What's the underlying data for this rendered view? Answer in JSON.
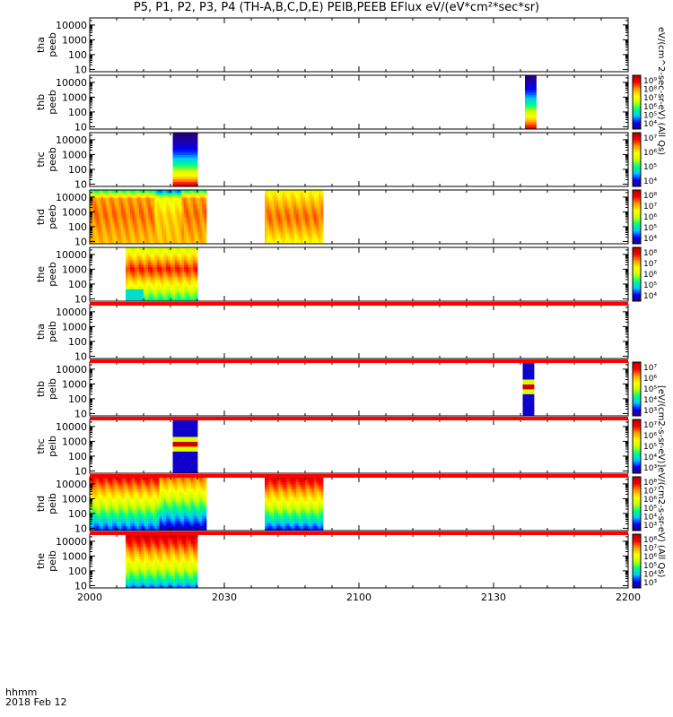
{
  "title": "P5, P1, P2, P3, P4 (TH-A,B,C,D,E) PEIB,PEEB EFlux eV/(eV*cm²*sec*sr)",
  "footer": {
    "hhmm": "hhmm",
    "date": "2018 Feb 12"
  },
  "colorbar_titles": {
    "electron": "eV/(cm^2-sec-sr-eV)  (All Qs)",
    "ion": "[eV/(cm2-s-sr-eV)]eV/(cm2-s-sr-eV)  (All Qs)"
  },
  "chart_data": {
    "type": "heatmap",
    "x_ticks": [
      "2000",
      "2030",
      "2100",
      "2130",
      "2200"
    ],
    "x_minor_ticks_per_major": 5,
    "x_range_minutes": [
      0,
      120
    ],
    "y_scale": "log",
    "y_range": [
      7,
      30000
    ],
    "y_ticks": [
      "10",
      "100",
      "1000",
      "10000"
    ],
    "colormap": [
      "#2a0070",
      "#0000ff",
      "#00c8ff",
      "#00ff80",
      "#c8ff00",
      "#ffff00",
      "#ffa000",
      "#ff0000",
      "#b40000"
    ],
    "panels": [
      {
        "l1": "tha",
        "l2": "peeb",
        "colorbar": false,
        "cb_labels": [],
        "blocks": []
      },
      {
        "l1": "thb",
        "l2": "peeb",
        "colorbar": true,
        "cb_labels": [
          "10⁹",
          "10⁸",
          "10⁷",
          "10⁶",
          "10⁵",
          "10⁴"
        ],
        "blocks": [
          {
            "t0": 97.0,
            "t1": 99.5,
            "kind": "spike"
          }
        ]
      },
      {
        "l1": "thc",
        "l2": "peeb",
        "colorbar": true,
        "cb_labels": [
          "10⁷",
          "10⁶",
          "10⁵",
          "10⁴"
        ],
        "blocks": [
          {
            "t0": 18.5,
            "t1": 24.0,
            "kind": "spike_c"
          }
        ]
      },
      {
        "l1": "thd",
        "l2": "peeb",
        "colorbar": true,
        "cb_labels": [
          "10⁸",
          "10⁷",
          "10⁶",
          "10⁵",
          "10⁴"
        ],
        "blocks": [
          {
            "t0": 0.0,
            "t1": 26.0,
            "kind": "e_hot"
          },
          {
            "t0": 39.0,
            "t1": 52.0,
            "kind": "e_hot2"
          }
        ]
      },
      {
        "l1": "the",
        "l2": "peeb",
        "colorbar": true,
        "cb_labels": [
          "10⁸",
          "10⁷",
          "10⁶",
          "10⁵",
          "10⁴"
        ],
        "blocks": [
          {
            "t0": 8.0,
            "t1": 24.0,
            "kind": "e_the"
          }
        ]
      },
      {
        "l1": "tha",
        "l2": "peib",
        "colorbar": false,
        "cb_labels": [],
        "blocks": []
      },
      {
        "l1": "thb",
        "l2": "peib",
        "colorbar": true,
        "cb_labels": [
          "10⁷",
          "10⁶",
          "10⁵",
          "10⁴",
          "10³"
        ],
        "blocks": [
          {
            "t0": 96.5,
            "t1": 99.0,
            "kind": "i_spike"
          }
        ]
      },
      {
        "l1": "thc",
        "l2": "peib",
        "colorbar": true,
        "cb_labels": [
          "10⁷",
          "10⁶",
          "10⁵",
          "10⁴",
          "10³"
        ],
        "blocks": [
          {
            "t0": 18.5,
            "t1": 24.0,
            "kind": "i_spike"
          }
        ]
      },
      {
        "l1": "thd",
        "l2": "peib",
        "colorbar": true,
        "cb_labels": [
          "10⁸",
          "10⁷",
          "10⁶",
          "10⁵",
          "10⁴",
          "10³"
        ],
        "blocks": [
          {
            "t0": 0.0,
            "t1": 26.0,
            "kind": "i_hot"
          },
          {
            "t0": 39.0,
            "t1": 52.0,
            "kind": "i_hot2"
          }
        ]
      },
      {
        "l1": "the",
        "l2": "peib",
        "colorbar": true,
        "cb_labels": [
          "10⁸",
          "10⁷",
          "10⁶",
          "10⁵",
          "10⁴",
          "10³"
        ],
        "blocks": [
          {
            "t0": 8.0,
            "t1": 24.0,
            "kind": "i_the"
          }
        ]
      }
    ]
  }
}
